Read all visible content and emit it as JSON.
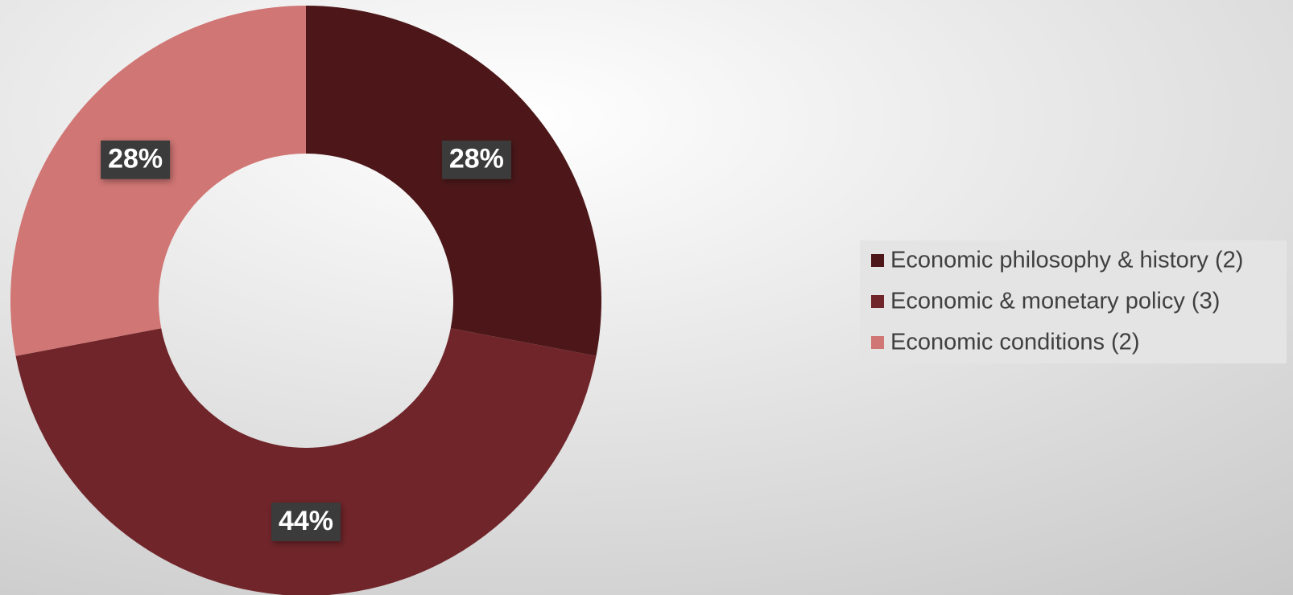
{
  "chart_data": {
    "type": "donut",
    "categories": [
      "Economic philosophy & history (2)",
      "Economic & monetary policy (3)",
      "Economic conditions (2)"
    ],
    "values": [
      28,
      44,
      28
    ],
    "value_labels": [
      "28%",
      "44%",
      "28%"
    ],
    "colors": [
      "#4d1719",
      "#70252a",
      "#d07674"
    ],
    "legend": "right"
  }
}
